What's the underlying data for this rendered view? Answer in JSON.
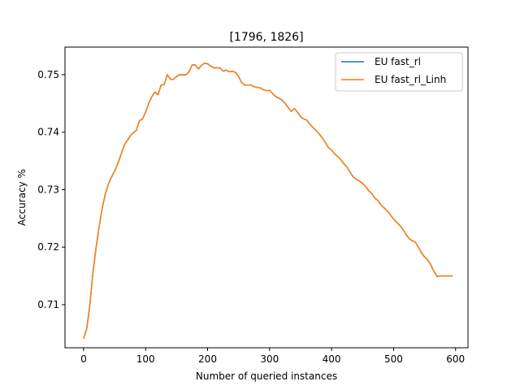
{
  "chart_data": {
    "type": "line",
    "title": "[1796, 1826]",
    "xlabel": "Number of queried instances",
    "ylabel": "Accuracy %",
    "xlim": [
      -30,
      620
    ],
    "ylim": [
      0.7025,
      0.7548
    ],
    "x_ticks": [
      0,
      100,
      200,
      300,
      400,
      500,
      600
    ],
    "x_tick_labels": [
      "0",
      "100",
      "200",
      "300",
      "400",
      "500",
      "600"
    ],
    "y_ticks": [
      0.71,
      0.72,
      0.73,
      0.74,
      0.75
    ],
    "y_tick_labels": [
      "0.71",
      "0.72",
      "0.73",
      "0.74",
      "0.75"
    ],
    "grid": false,
    "legend_position": "top-right",
    "x": [
      0,
      5,
      10,
      15,
      20,
      25,
      30,
      35,
      40,
      45,
      50,
      55,
      60,
      65,
      70,
      75,
      80,
      85,
      90,
      95,
      100,
      105,
      110,
      115,
      120,
      125,
      130,
      135,
      140,
      145,
      150,
      155,
      160,
      165,
      170,
      175,
      180,
      185,
      190,
      195,
      200,
      205,
      210,
      215,
      220,
      225,
      230,
      235,
      240,
      245,
      250,
      255,
      260,
      265,
      270,
      275,
      280,
      285,
      290,
      295,
      300,
      305,
      310,
      315,
      320,
      325,
      330,
      335,
      340,
      345,
      350,
      355,
      360,
      365,
      370,
      375,
      380,
      385,
      390,
      395,
      400,
      405,
      410,
      415,
      420,
      425,
      430,
      435,
      440,
      445,
      450,
      455,
      460,
      465,
      470,
      475,
      480,
      485,
      490,
      495,
      500,
      505,
      510,
      515,
      520,
      525,
      530,
      535,
      540,
      545,
      550,
      555,
      560,
      565,
      570,
      575,
      580,
      585,
      590,
      595
    ],
    "series": [
      {
        "name": "EU fast_rl",
        "color": "#1f77b4",
        "values": [
          0.7041,
          0.7058,
          0.7098,
          0.7155,
          0.7198,
          0.7235,
          0.7268,
          0.7292,
          0.731,
          0.7322,
          0.7332,
          0.7345,
          0.736,
          0.7376,
          0.7385,
          0.7393,
          0.7399,
          0.7403,
          0.742,
          0.7423,
          0.7435,
          0.745,
          0.7462,
          0.747,
          0.7465,
          0.7482,
          0.7483,
          0.75,
          0.7492,
          0.7492,
          0.7497,
          0.75,
          0.75,
          0.75,
          0.7505,
          0.7517,
          0.7517,
          0.751,
          0.7516,
          0.752,
          0.7519,
          0.7515,
          0.7512,
          0.7512,
          0.7512,
          0.7506,
          0.7508,
          0.7505,
          0.7506,
          0.7504,
          0.7497,
          0.7486,
          0.7482,
          0.7482,
          0.7482,
          0.7479,
          0.7478,
          0.7477,
          0.7474,
          0.7472,
          0.7473,
          0.7467,
          0.7462,
          0.7459,
          0.7456,
          0.745,
          0.7443,
          0.7436,
          0.7441,
          0.7435,
          0.7427,
          0.7423,
          0.7421,
          0.7414,
          0.7408,
          0.7403,
          0.7397,
          0.739,
          0.7382,
          0.7373,
          0.7369,
          0.7362,
          0.7358,
          0.7352,
          0.7345,
          0.7339,
          0.733,
          0.7322,
          0.7318,
          0.7315,
          0.7311,
          0.7305,
          0.7298,
          0.7293,
          0.7285,
          0.7281,
          0.7273,
          0.7268,
          0.7263,
          0.7256,
          0.7249,
          0.7243,
          0.7238,
          0.7231,
          0.7222,
          0.7215,
          0.7211,
          0.7209,
          0.72,
          0.719,
          0.7183,
          0.7178,
          0.7169,
          0.7158,
          0.7149,
          0.715,
          0.715,
          0.715,
          0.715,
          0.715
        ]
      },
      {
        "name": "EU fast_rl_Linh",
        "color": "#ff7f0e",
        "values": [
          0.7041,
          0.7058,
          0.7098,
          0.7155,
          0.7198,
          0.7235,
          0.7268,
          0.7292,
          0.731,
          0.7322,
          0.7332,
          0.7345,
          0.736,
          0.7376,
          0.7385,
          0.7393,
          0.7399,
          0.7403,
          0.742,
          0.7423,
          0.7435,
          0.745,
          0.7462,
          0.747,
          0.7465,
          0.7482,
          0.7483,
          0.75,
          0.7492,
          0.7492,
          0.7497,
          0.75,
          0.75,
          0.75,
          0.7505,
          0.7517,
          0.7517,
          0.751,
          0.7516,
          0.752,
          0.7519,
          0.7515,
          0.7512,
          0.7512,
          0.7512,
          0.7506,
          0.7508,
          0.7505,
          0.7506,
          0.7504,
          0.7497,
          0.7486,
          0.7482,
          0.7482,
          0.7482,
          0.7479,
          0.7478,
          0.7477,
          0.7474,
          0.7472,
          0.7473,
          0.7467,
          0.7462,
          0.7459,
          0.7456,
          0.745,
          0.7443,
          0.7436,
          0.7441,
          0.7435,
          0.7427,
          0.7423,
          0.7421,
          0.7414,
          0.7408,
          0.7403,
          0.7397,
          0.739,
          0.7382,
          0.7373,
          0.7369,
          0.7362,
          0.7358,
          0.7352,
          0.7345,
          0.7339,
          0.733,
          0.7322,
          0.7318,
          0.7315,
          0.7311,
          0.7305,
          0.7298,
          0.7293,
          0.7285,
          0.7281,
          0.7273,
          0.7268,
          0.7263,
          0.7256,
          0.7249,
          0.7243,
          0.7238,
          0.7231,
          0.7222,
          0.7215,
          0.7211,
          0.7209,
          0.72,
          0.719,
          0.7183,
          0.7178,
          0.7169,
          0.7158,
          0.7149,
          0.715,
          0.715,
          0.715,
          0.715,
          0.715
        ]
      }
    ]
  }
}
